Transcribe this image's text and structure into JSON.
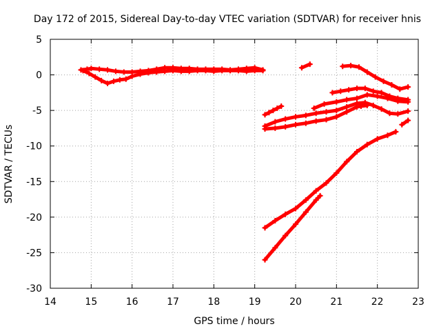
{
  "chart_data": {
    "type": "scatter",
    "title": "Day 172 of 2015, Sidereal Day-to-day VTEC variation (SDTVAR) for receiver hnis",
    "xlabel": "GPS time / hours",
    "ylabel": "SDTVAR / TECUs",
    "xlim": [
      14,
      23
    ],
    "ylim": [
      -30,
      5
    ],
    "x_ticks": [
      14,
      15,
      16,
      17,
      18,
      19,
      20,
      21,
      22,
      23
    ],
    "y_ticks": [
      5,
      0,
      -5,
      -10,
      -15,
      -20,
      -25,
      -30
    ],
    "grid": true,
    "color": "#ff0000",
    "series": [
      {
        "x": [
          14.75,
          14.9,
          15.0,
          15.2,
          15.4,
          15.6,
          15.8,
          16.0,
          16.2,
          16.4,
          16.6,
          16.8,
          17.0,
          17.2,
          17.4,
          17.6,
          17.8,
          18.0,
          18.2,
          18.4,
          18.6,
          18.8,
          19.0,
          19.2
        ],
        "y": [
          0.7,
          0.8,
          0.9,
          0.8,
          0.7,
          0.5,
          0.4,
          0.4,
          0.5,
          0.6,
          0.8,
          1.0,
          1.0,
          0.9,
          0.9,
          0.8,
          0.8,
          0.8,
          0.8,
          0.7,
          0.8,
          0.9,
          1.0,
          0.7
        ]
      },
      {
        "x": [
          14.8,
          14.95,
          15.1,
          15.25,
          15.4,
          15.55,
          15.7,
          15.85,
          16.0,
          16.2,
          16.4,
          16.6,
          16.8,
          17.0,
          17.2,
          17.4,
          17.6,
          17.8,
          18.0,
          18.2,
          18.4,
          18.6,
          18.8,
          19.0,
          19.2
        ],
        "y": [
          0.6,
          0.2,
          -0.3,
          -0.8,
          -1.2,
          -0.9,
          -0.7,
          -0.6,
          -0.2,
          0.1,
          0.3,
          0.4,
          0.5,
          0.6,
          0.5,
          0.5,
          0.6,
          0.6,
          0.5,
          0.6,
          0.6,
          0.6,
          0.5,
          0.6,
          0.6
        ]
      },
      {
        "x": [
          19.25,
          19.35,
          19.45,
          19.55,
          19.65
        ],
        "y": [
          -5.6,
          -5.3,
          -5.0,
          -4.7,
          -4.4
        ]
      },
      {
        "x": [
          19.25,
          19.5,
          19.75,
          20.0,
          20.25,
          20.5,
          20.75,
          21.0,
          21.25,
          21.5,
          21.7,
          21.9,
          22.1,
          22.3,
          22.5,
          22.75
        ],
        "y": [
          -7.2,
          -6.6,
          -6.2,
          -5.9,
          -5.7,
          -5.4,
          -5.2,
          -5.0,
          -4.5,
          -4.0,
          -3.9,
          -4.3,
          -4.8,
          -5.4,
          -5.5,
          -5.1
        ]
      },
      {
        "x": [
          19.25,
          19.5,
          19.75,
          20.0,
          20.25,
          20.5,
          20.75,
          21.0,
          21.25,
          21.5,
          21.6,
          21.75
        ],
        "y": [
          -7.6,
          -7.5,
          -7.3,
          -7.0,
          -6.8,
          -6.5,
          -6.3,
          -5.9,
          -5.2,
          -4.5,
          -4.4,
          -4.3
        ]
      },
      {
        "x": [
          20.45,
          20.7,
          21.0,
          21.25,
          21.5,
          21.75,
          22.0,
          22.25,
          22.5,
          22.75
        ],
        "y": [
          -4.7,
          -4.1,
          -3.8,
          -3.5,
          -3.3,
          -2.8,
          -3.0,
          -3.3,
          -3.7,
          -3.8
        ]
      },
      {
        "x": [
          20.9,
          21.1,
          21.3,
          21.5,
          21.7,
          21.9,
          22.1,
          22.3,
          22.5,
          22.75
        ],
        "y": [
          -2.5,
          -2.3,
          -2.1,
          -1.9,
          -1.9,
          -2.3,
          -2.5,
          -3.0,
          -3.3,
          -3.5
        ]
      },
      {
        "x": [
          21.15,
          21.35,
          21.55,
          21.75,
          21.95,
          22.15,
          22.35,
          22.55,
          22.75
        ],
        "y": [
          1.2,
          1.3,
          1.1,
          0.4,
          -0.3,
          -0.9,
          -1.4,
          -2.0,
          -1.7
        ]
      },
      {
        "x": [
          20.15,
          20.35
        ],
        "y": [
          1.0,
          1.5
        ]
      },
      {
        "x": [
          22.6,
          22.75
        ],
        "y": [
          -7.0,
          -6.4
        ]
      },
      {
        "x": [
          19.25,
          19.5,
          19.75,
          20.0,
          20.25,
          20.5,
          20.75,
          21.0,
          21.25,
          21.5,
          21.75,
          22.0,
          22.25,
          22.45
        ],
        "y": [
          -21.5,
          -20.5,
          -19.6,
          -18.8,
          -17.6,
          -16.3,
          -15.2,
          -13.8,
          -12.2,
          -10.8,
          -9.8,
          -9.0,
          -8.5,
          -8.0
        ]
      },
      {
        "x": [
          19.25,
          19.5,
          19.75,
          20.0,
          20.25,
          20.5,
          20.6
        ],
        "y": [
          -26.0,
          -24.3,
          -22.6,
          -21.0,
          -19.3,
          -17.6,
          -17.0
        ]
      }
    ]
  }
}
